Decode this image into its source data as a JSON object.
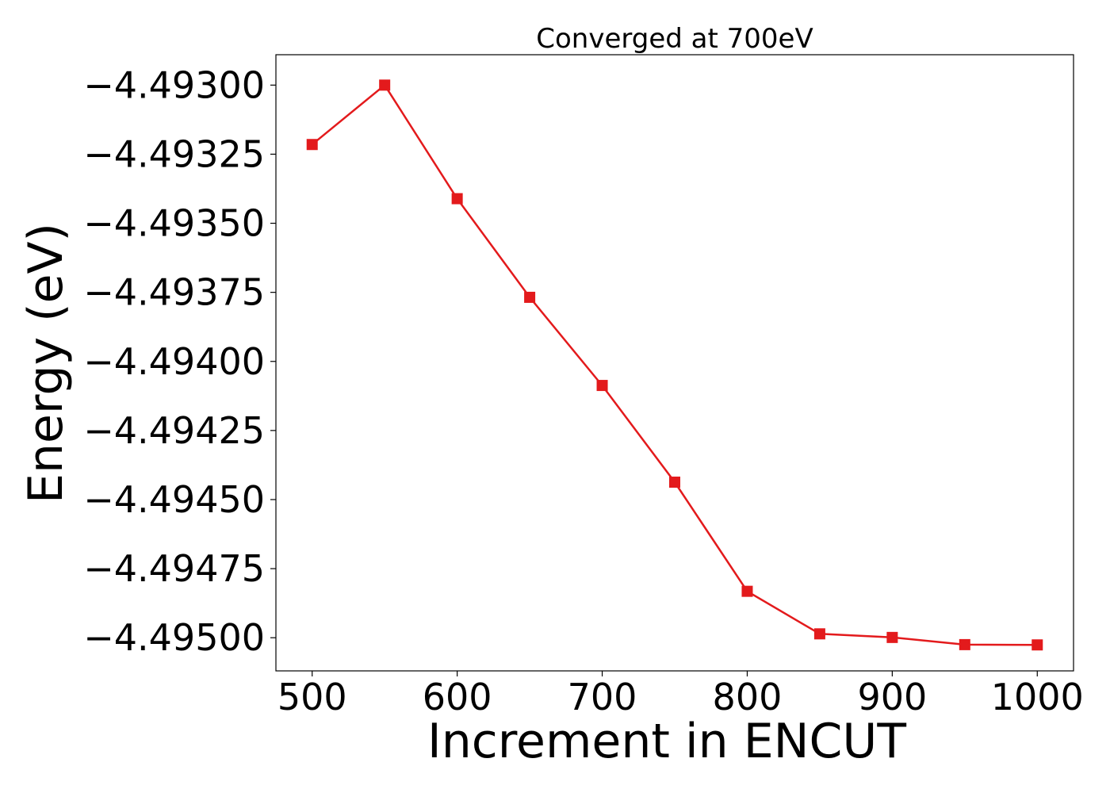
{
  "chart_data": {
    "type": "line",
    "title": "Converged at 700eV",
    "xlabel": "Increment in ENCUT",
    "ylabel": "Energy (eV)",
    "xlim": [
      475,
      1025
    ],
    "ylim": [
      -4.49512,
      -4.49289
    ],
    "xticks": [
      500,
      600,
      700,
      800,
      900,
      1000
    ],
    "yticks": [
      -4.493,
      -4.49325,
      -4.4935,
      -4.49375,
      -4.494,
      -4.49425,
      -4.4945,
      -4.49475,
      -4.495
    ],
    "ytick_labels": [
      "−4.49300",
      "−4.49325",
      "−4.49350",
      "−4.49375",
      "−4.49400",
      "−4.49425",
      "−4.49450",
      "−4.49475",
      "−4.49500"
    ],
    "grid": false,
    "legend": null,
    "series": [
      {
        "color": "#e31a1c",
        "marker": "square",
        "x": [
          500,
          550,
          600,
          650,
          700,
          750,
          800,
          850,
          900,
          950,
          1000
        ],
        "y": [
          -4.493215,
          -4.493,
          -4.493411,
          -4.493768,
          -4.494087,
          -4.494437,
          -4.494832,
          -4.494986,
          -4.494999,
          -4.495025,
          -4.495026
        ]
      }
    ]
  }
}
